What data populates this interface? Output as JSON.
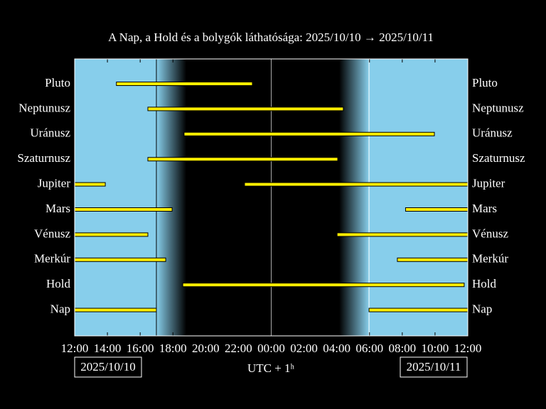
{
  "chart_data": {
    "type": "timeline",
    "title": "A Nap, a Hold és a bolygók láthatósága: 2025/10/10 → 2025/10/11",
    "xlabel": "UTC + 1ʰ",
    "start_date": "2025/10/10",
    "end_date": "2025/10/11",
    "xlim": [
      12,
      36
    ],
    "xticks": [
      {
        "value": 12,
        "label": "12:00"
      },
      {
        "value": 14,
        "label": "14:00"
      },
      {
        "value": 16,
        "label": "16:00"
      },
      {
        "value": 18,
        "label": "18:00"
      },
      {
        "value": 20,
        "label": "20:00"
      },
      {
        "value": 22,
        "label": "22:00"
      },
      {
        "value": 24,
        "label": "00:00"
      },
      {
        "value": 26,
        "label": "02:00"
      },
      {
        "value": 28,
        "label": "04:00"
      },
      {
        "value": 30,
        "label": "06:00"
      },
      {
        "value": 32,
        "label": "08:00"
      },
      {
        "value": 34,
        "label": "10:00"
      },
      {
        "value": 36,
        "label": "12:00"
      }
    ],
    "color": "#ffee00",
    "rows": [
      {
        "name": "Pluto",
        "segments": [
          [
            14.55,
            22.85
          ]
        ]
      },
      {
        "name": "Neptunusz",
        "segments": [
          [
            16.47,
            28.4
          ]
        ]
      },
      {
        "name": "Uránusz",
        "segments": [
          [
            18.68,
            33.96
          ]
        ]
      },
      {
        "name": "Szaturnusz",
        "segments": [
          [
            16.47,
            28.06
          ]
        ]
      },
      {
        "name": "Jupiter",
        "segments": [
          [
            12,
            13.87
          ],
          [
            22.37,
            36
          ]
        ]
      },
      {
        "name": "Mars",
        "segments": [
          [
            12,
            17.95
          ],
          [
            32.2,
            36
          ]
        ]
      },
      {
        "name": "Vénusz",
        "segments": [
          [
            12,
            16.47
          ],
          [
            28.02,
            36
          ]
        ]
      },
      {
        "name": "Merkúr",
        "segments": [
          [
            12,
            17.56
          ],
          [
            31.7,
            36
          ]
        ]
      },
      {
        "name": "Hold",
        "segments": [
          [
            18.6,
            35.78
          ]
        ]
      },
      {
        "name": "Nap",
        "segments": [
          [
            12,
            16.99
          ],
          [
            29.97,
            36
          ]
        ]
      }
    ]
  }
}
